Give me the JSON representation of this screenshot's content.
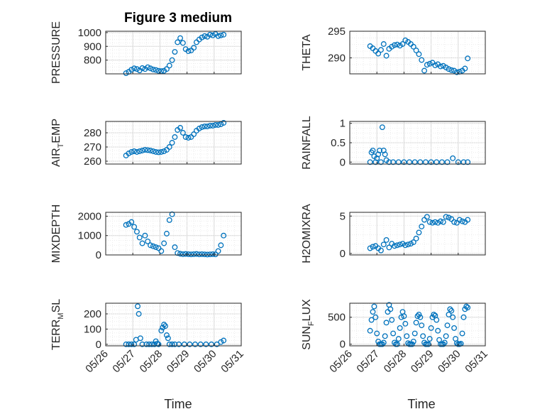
{
  "figure": {
    "title": "Figure 3 medium",
    "marker_color": "#0072bd",
    "grid": true,
    "x_axis_label": "Time",
    "x_ticks": [
      "05/26",
      "05/27",
      "05/28",
      "05/29",
      "05/30",
      "05/31"
    ]
  },
  "chart_data": [
    {
      "type": "scatter",
      "panel": "pressure",
      "title": "Figure 3 medium",
      "ylabel": "PRESSURE",
      "ylim": [
        700,
        1010
      ],
      "yticks": [
        800,
        900,
        1000
      ],
      "x": [
        26.75,
        26.85,
        26.95,
        27.05,
        27.15,
        27.25,
        27.35,
        27.45,
        27.55,
        27.65,
        27.75,
        27.85,
        27.95,
        28.05,
        28.15,
        28.25,
        28.35,
        28.45,
        28.55,
        28.65,
        28.75,
        28.85,
        28.95,
        29.05,
        29.15,
        29.25,
        29.35,
        29.45,
        29.55,
        29.65,
        29.75,
        29.85,
        29.95,
        30.05,
        30.15,
        30.25,
        30.35
      ],
      "y": [
        705,
        715,
        730,
        740,
        735,
        725,
        742,
        735,
        748,
        740,
        732,
        728,
        722,
        720,
        722,
        735,
        760,
        800,
        860,
        930,
        960,
        925,
        880,
        865,
        870,
        890,
        930,
        950,
        965,
        975,
        970,
        985,
        980,
        990,
        975,
        980,
        985
      ]
    },
    {
      "type": "scatter",
      "panel": "theta",
      "ylabel": "THETA",
      "ylim": [
        287,
        295
      ],
      "yticks": [
        290,
        295
      ],
      "x": [
        26.75,
        26.85,
        26.95,
        27.05,
        27.15,
        27.25,
        27.35,
        27.45,
        27.55,
        27.65,
        27.75,
        27.85,
        27.95,
        28.05,
        28.15,
        28.25,
        28.35,
        28.45,
        28.55,
        28.65,
        28.75,
        28.85,
        28.95,
        29.05,
        29.15,
        29.25,
        29.35,
        29.45,
        29.55,
        29.65,
        29.75,
        29.85,
        29.95,
        30.05,
        30.15,
        30.25,
        30.35
      ],
      "y": [
        292.2,
        291.8,
        291.3,
        290.8,
        291.5,
        292.6,
        290.4,
        291.7,
        292.1,
        292.4,
        292.5,
        292.3,
        292.6,
        293.3,
        293.0,
        292.6,
        292.1,
        291.4,
        290.7,
        289.6,
        287.6,
        288.7,
        288.9,
        289.1,
        288.6,
        288.8,
        288.4,
        288.5,
        288.2,
        287.9,
        287.7,
        287.6,
        287.3,
        287.4,
        287.6,
        288.0,
        289.9
      ]
    },
    {
      "type": "scatter",
      "panel": "air_temp",
      "ylabel": "AIR_TEMP",
      "ylim": [
        258,
        288
      ],
      "yticks": [
        260,
        270,
        280
      ],
      "x": [
        26.75,
        26.85,
        26.95,
        27.05,
        27.15,
        27.25,
        27.35,
        27.45,
        27.55,
        27.65,
        27.75,
        27.85,
        27.95,
        28.05,
        28.15,
        28.25,
        28.35,
        28.45,
        28.55,
        28.65,
        28.75,
        28.85,
        28.95,
        29.05,
        29.15,
        29.25,
        29.35,
        29.45,
        29.55,
        29.65,
        29.75,
        29.85,
        29.95,
        30.05,
        30.15,
        30.25,
        30.35
      ],
      "y": [
        264,
        265.5,
        266.5,
        267,
        266.5,
        267,
        267.5,
        268,
        267.8,
        267.5,
        267,
        266.5,
        266.3,
        266.5,
        267,
        268,
        270,
        273,
        277,
        282,
        283.5,
        280,
        277,
        276.5,
        277,
        279,
        281.5,
        283,
        284,
        284.5,
        284.5,
        285,
        285,
        285.5,
        285.5,
        286,
        287
      ]
    },
    {
      "type": "scatter",
      "panel": "rainfall",
      "ylabel": "RAINFALL",
      "ylim": [
        -0.05,
        1.05
      ],
      "yticks": [
        0,
        0.5,
        1
      ],
      "x": [
        26.75,
        26.8,
        26.85,
        26.9,
        26.95,
        27.0,
        27.05,
        27.1,
        27.15,
        27.2,
        27.25,
        27.3,
        27.35,
        27.45,
        27.6,
        27.8,
        28.0,
        28.2,
        28.4,
        28.6,
        28.8,
        29.0,
        29.2,
        29.4,
        29.6,
        29.8,
        30.0,
        30.2,
        30.35
      ],
      "y": [
        0.0,
        0.25,
        0.3,
        0.15,
        0.0,
        0.1,
        0.2,
        0.3,
        0.0,
        0.9,
        0.3,
        0.2,
        0.05,
        0.0,
        0.0,
        0.0,
        0.0,
        0.0,
        0.0,
        0.0,
        0.0,
        0.0,
        0.0,
        0.0,
        0.0,
        0.1,
        0.0,
        0.0,
        0.0
      ]
    },
    {
      "type": "scatter",
      "panel": "mixdepth",
      "ylabel": "MIXDEPTH",
      "ylim": [
        0,
        2200
      ],
      "yticks": [
        0,
        1000,
        2000
      ],
      "x": [
        26.75,
        26.85,
        26.95,
        27.05,
        27.15,
        27.25,
        27.35,
        27.45,
        27.55,
        27.65,
        27.75,
        27.85,
        27.95,
        28.05,
        28.15,
        28.25,
        28.35,
        28.45,
        28.55,
        28.65,
        28.75,
        28.85,
        28.95,
        29.05,
        29.15,
        29.25,
        29.35,
        29.45,
        29.55,
        29.65,
        29.75,
        29.85,
        29.95,
        30.05,
        30.15,
        30.25,
        30.35
      ],
      "y": [
        1550,
        1600,
        1700,
        1450,
        1200,
        900,
        600,
        1000,
        700,
        500,
        450,
        400,
        350,
        200,
        600,
        1100,
        1800,
        2100,
        400,
        100,
        60,
        40,
        50,
        40,
        30,
        40,
        50,
        30,
        40,
        30,
        20,
        30,
        40,
        30,
        200,
        500,
        1000
      ]
    },
    {
      "type": "scatter",
      "panel": "h2omixra",
      "ylabel": "H2OMIXRA",
      "ylim": [
        -0.2,
        5.5
      ],
      "yticks": [
        0,
        5
      ],
      "x": [
        26.75,
        26.85,
        26.95,
        27.05,
        27.15,
        27.25,
        27.35,
        27.45,
        27.55,
        27.65,
        27.75,
        27.85,
        27.95,
        28.05,
        28.15,
        28.25,
        28.35,
        28.45,
        28.55,
        28.65,
        28.75,
        28.85,
        28.95,
        29.05,
        29.15,
        29.25,
        29.35,
        29.45,
        29.55,
        29.65,
        29.75,
        29.85,
        29.95,
        30.05,
        30.15,
        30.25,
        30.35
      ],
      "y": [
        0.7,
        0.9,
        1.0,
        0.7,
        0.4,
        1.2,
        1.8,
        0.8,
        1.3,
        1.0,
        1.1,
        1.2,
        1.3,
        1.1,
        1.2,
        1.3,
        1.5,
        2.0,
        2.8,
        3.6,
        4.5,
        4.9,
        4.2,
        4.1,
        4.2,
        4.1,
        4.3,
        4.2,
        4.9,
        4.8,
        4.6,
        4.2,
        4.1,
        4.5,
        4.3,
        4.2,
        4.5
      ]
    },
    {
      "type": "scatter",
      "panel": "terr_msl",
      "ylabel": "TERR_MSL",
      "ylim": [
        -10,
        270
      ],
      "yticks": [
        0,
        100,
        200
      ],
      "x": [
        26.75,
        26.85,
        26.95,
        27.05,
        27.12,
        27.18,
        27.22,
        27.28,
        27.35,
        27.5,
        27.6,
        27.7,
        27.8,
        27.85,
        27.9,
        27.95,
        28.05,
        28.1,
        28.15,
        28.2,
        28.25,
        28.3,
        28.35,
        28.45,
        28.55,
        28.7,
        28.9,
        29.1,
        29.3,
        29.5,
        29.7,
        29.9,
        30.1,
        30.25,
        30.35
      ],
      "y": [
        0,
        0,
        0,
        0,
        30,
        250,
        200,
        40,
        0,
        0,
        0,
        0,
        0,
        20,
        5,
        0,
        90,
        110,
        130,
        120,
        60,
        40,
        0,
        0,
        0,
        0,
        0,
        0,
        0,
        0,
        0,
        0,
        0,
        15,
        25
      ]
    },
    {
      "type": "scatter",
      "panel": "sun_flux",
      "ylabel": "SUN_FLUX",
      "ylim": [
        -30,
        760
      ],
      "yticks": [
        0,
        500
      ],
      "x": [
        26.75,
        26.8,
        26.85,
        26.9,
        26.95,
        27.0,
        27.05,
        27.1,
        27.15,
        27.2,
        27.25,
        27.3,
        27.35,
        27.4,
        27.45,
        27.5,
        27.55,
        27.6,
        27.65,
        27.7,
        27.75,
        27.8,
        27.85,
        27.9,
        27.95,
        28.0,
        28.05,
        28.1,
        28.15,
        28.2,
        28.25,
        28.3,
        28.35,
        28.4,
        28.45,
        28.5,
        28.55,
        28.6,
        28.65,
        28.7,
        28.75,
        28.8,
        28.85,
        28.9,
        28.95,
        29.0,
        29.05,
        29.1,
        29.15,
        29.2,
        29.25,
        29.3,
        29.35,
        29.4,
        29.45,
        29.5,
        29.55,
        29.6,
        29.65,
        29.7,
        29.75,
        29.8,
        29.85,
        29.9,
        29.95,
        30.0,
        30.05,
        30.1,
        30.15,
        30.2,
        30.25,
        30.3,
        30.35
      ],
      "y": [
        250,
        450,
        600,
        700,
        500,
        200,
        50,
        0,
        0,
        0,
        30,
        150,
        400,
        600,
        730,
        650,
        450,
        200,
        30,
        0,
        0,
        100,
        300,
        500,
        600,
        520,
        380,
        150,
        20,
        0,
        0,
        0,
        50,
        200,
        400,
        520,
        550,
        500,
        350,
        150,
        30,
        0,
        0,
        0,
        100,
        300,
        500,
        550,
        530,
        450,
        250,
        80,
        0,
        0,
        0,
        30,
        150,
        350,
        550,
        650,
        620,
        500,
        300,
        100,
        20,
        0,
        0,
        10,
        200,
        500,
        650,
        700,
        680
      ]
    }
  ]
}
